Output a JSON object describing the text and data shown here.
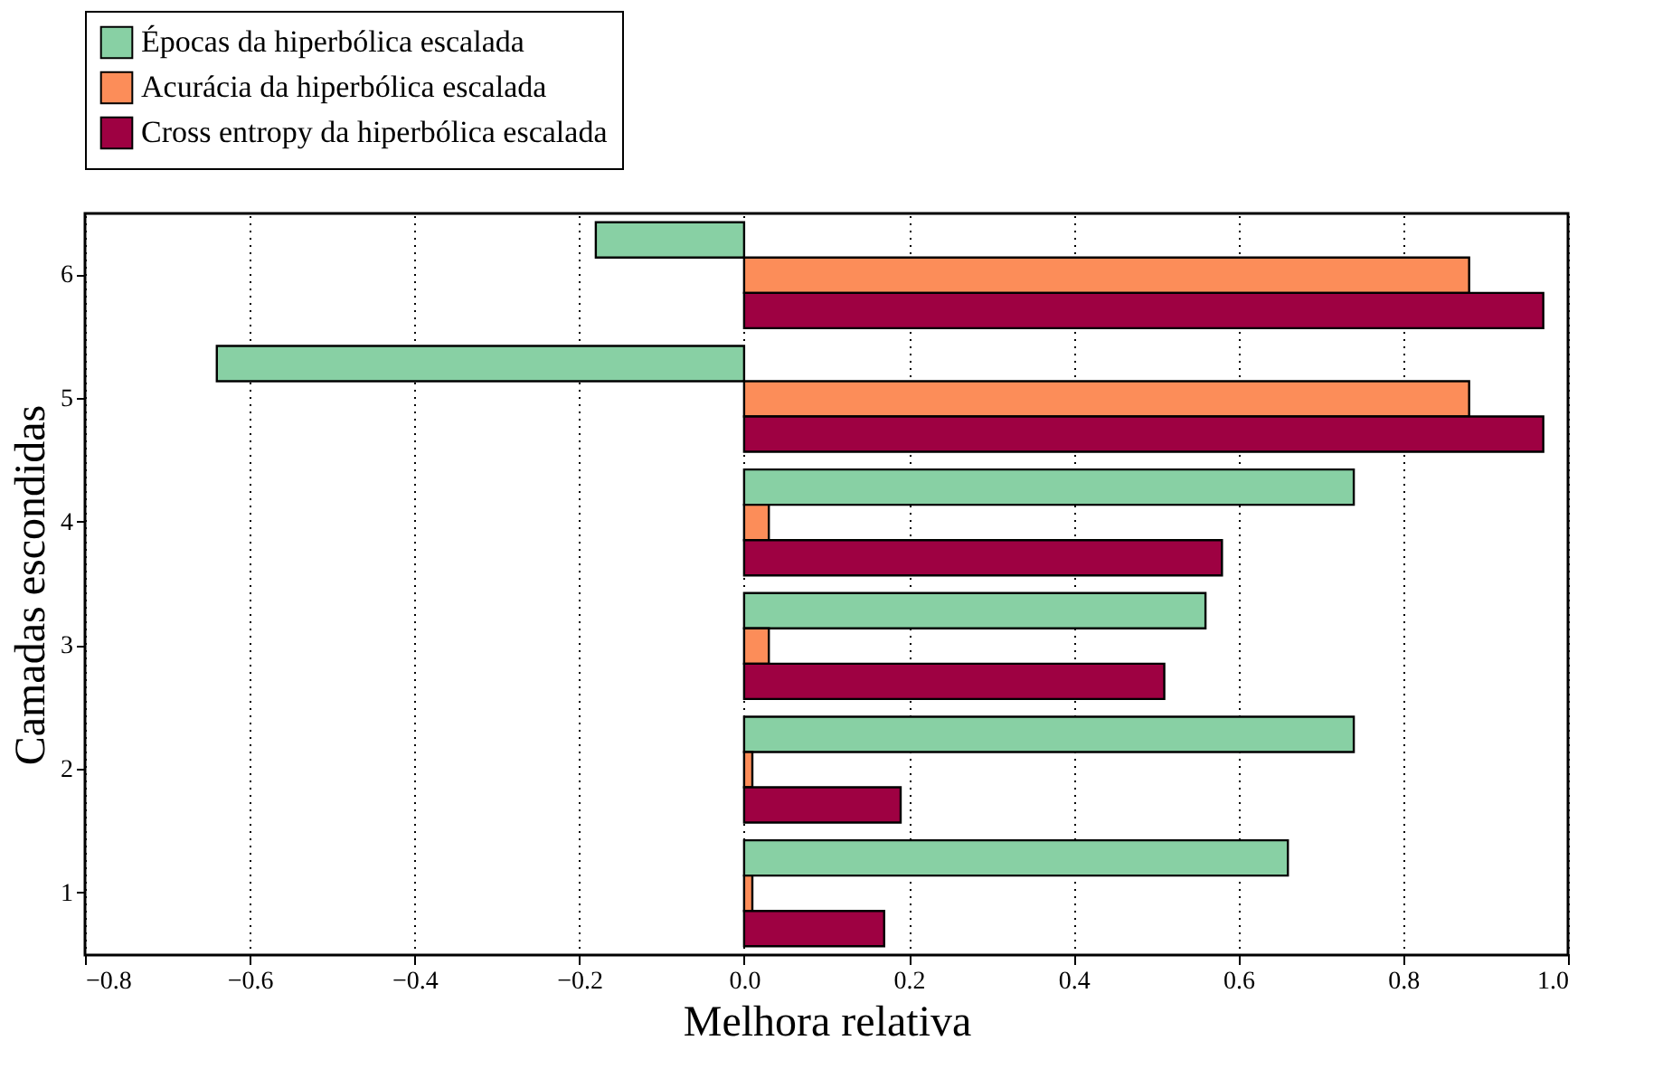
{
  "chart_data": {
    "type": "bar",
    "orientation": "horizontal",
    "xlabel": "Melhora relativa",
    "ylabel": "Camadas escondidas",
    "categories": [
      "6",
      "5",
      "4",
      "3",
      "2",
      "1"
    ],
    "series": [
      {
        "name": "Épocas da hiperbólica escalada",
        "color": "#88d0a4",
        "values": [
          -0.18,
          -0.64,
          0.74,
          0.56,
          0.74,
          0.66
        ]
      },
      {
        "name": "Acurácia da hiperbólica escalada",
        "color": "#fc8d59",
        "values": [
          0.88,
          0.88,
          0.03,
          0.03,
          0.01,
          0.01
        ]
      },
      {
        "name": "Cross entropy da hiperbólica escalada",
        "color": "#9e0142",
        "values": [
          0.97,
          0.97,
          0.58,
          0.51,
          0.19,
          0.17
        ]
      }
    ],
    "xlim": [
      -0.8,
      1.0
    ],
    "xticks": [
      -0.8,
      -0.6,
      -0.4,
      -0.2,
      {
        "value": 0,
        "label": "0.0"
      },
      0.2,
      0.4,
      0.6,
      0.8,
      {
        "value": 1,
        "label": "1.0"
      }
    ],
    "grid": "x",
    "legend": "top left"
  }
}
